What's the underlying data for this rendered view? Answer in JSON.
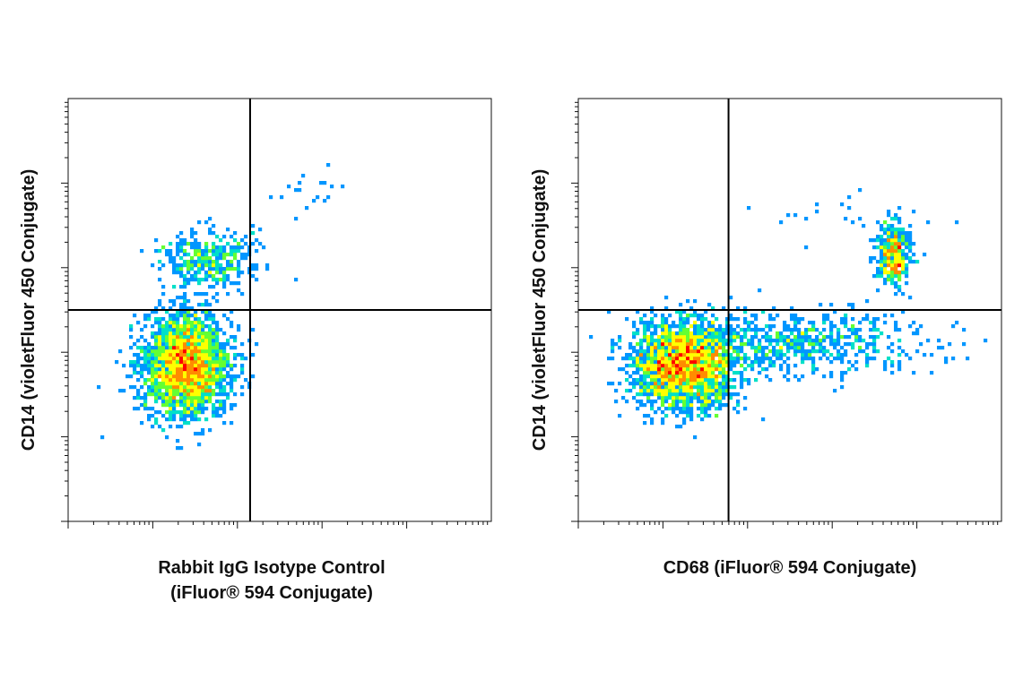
{
  "chart_data": [
    {
      "type": "scatter",
      "title": "",
      "xlabel": [
        "Rabbit IgG Isotype Control",
        "(iFluor® 594 Conjugate)"
      ],
      "ylabel": "CD14 (violetFluor 450 Conjugate)",
      "xscale": "log",
      "yscale": "log",
      "grid": false,
      "gate": {
        "x": 0.43,
        "y": 0.5
      },
      "populations": [
        {
          "name": "",
          "center": [
            0.28,
            0.37
          ],
          "spread": [
            0.05,
            0.06
          ],
          "count": 2600,
          "density": "high"
        },
        {
          "name": "",
          "center": [
            0.33,
            0.62
          ],
          "spread": [
            0.055,
            0.035
          ],
          "count": 380,
          "density": "medium"
        },
        {
          "name": "",
          "center": [
            0.55,
            0.77
          ],
          "spread": [
            0.05,
            0.025
          ],
          "count": 18,
          "density": "low"
        }
      ]
    },
    {
      "type": "scatter",
      "title": "",
      "xlabel": [
        "CD68 (iFluor® 594 Conjugate)"
      ],
      "ylabel": "CD14 (violetFluor 450 Conjugate)",
      "xscale": "log",
      "yscale": "log",
      "grid": false,
      "gate": {
        "x": 0.355,
        "y": 0.5
      },
      "populations": [
        {
          "name": "",
          "center": [
            0.25,
            0.37
          ],
          "spread": [
            0.06,
            0.05
          ],
          "count": 2300,
          "density": "high"
        },
        {
          "name": "",
          "center": [
            0.5,
            0.42
          ],
          "spread": [
            0.16,
            0.04
          ],
          "count": 650,
          "density": "low"
        },
        {
          "name": "",
          "center": [
            0.745,
            0.63
          ],
          "spread": [
            0.02,
            0.035
          ],
          "count": 420,
          "density": "medium"
        },
        {
          "name": "",
          "center": [
            0.6,
            0.72
          ],
          "spread": [
            0.12,
            0.03
          ],
          "count": 25,
          "density": "low"
        }
      ]
    }
  ],
  "colors": {
    "density": [
      "#0000ff",
      "#0096ff",
      "#00e0c8",
      "#64ff32",
      "#ffff00",
      "#ff8c00",
      "#ff0000"
    ],
    "axis": "#111111",
    "gate": "#000000"
  }
}
